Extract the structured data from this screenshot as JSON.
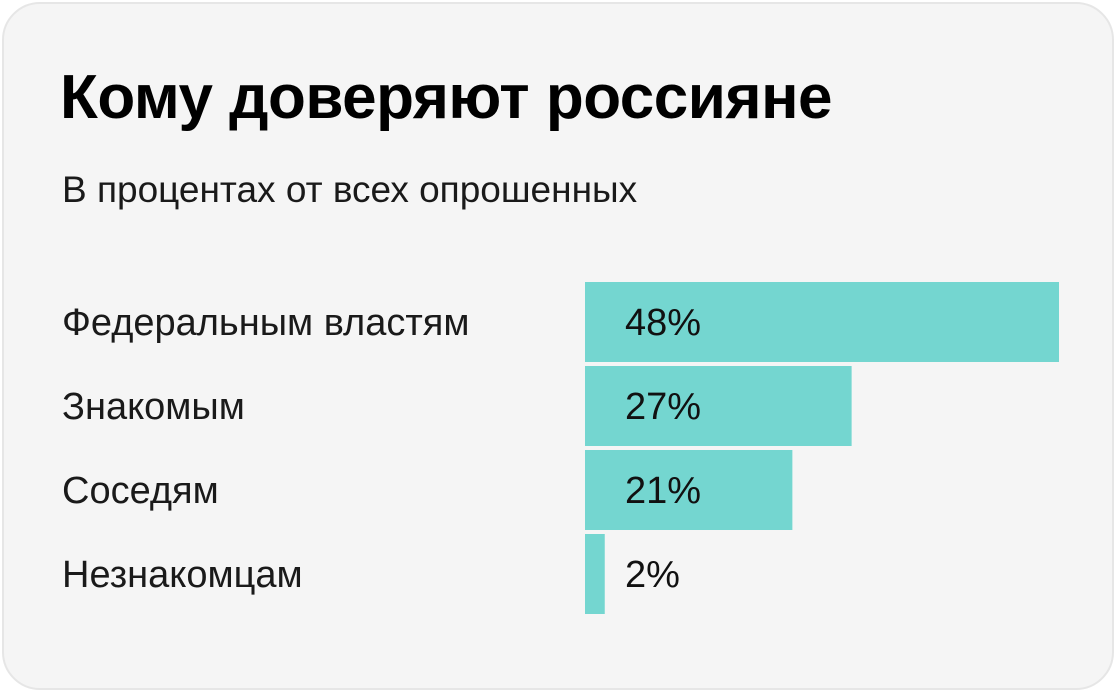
{
  "title": "Кому доверяют россияне",
  "subtitle": "В процентах от всех опрошенных",
  "chart_data": {
    "type": "bar",
    "orientation": "horizontal",
    "title": "Кому доверяют россияне",
    "subtitle": "В процентах от всех опрошенных",
    "categories": [
      "Федеральным властям",
      "Знакомым",
      "Соседям",
      "Незнакомцам"
    ],
    "values": [
      48,
      27,
      21,
      2
    ],
    "value_labels": [
      "48%",
      "27%",
      "21%",
      "2%"
    ],
    "unit": "%",
    "grid": false,
    "legend": "none",
    "colors": {
      "bar": "#74d6d0",
      "background": "#f5f5f5",
      "text": "#1a1a1a"
    }
  }
}
